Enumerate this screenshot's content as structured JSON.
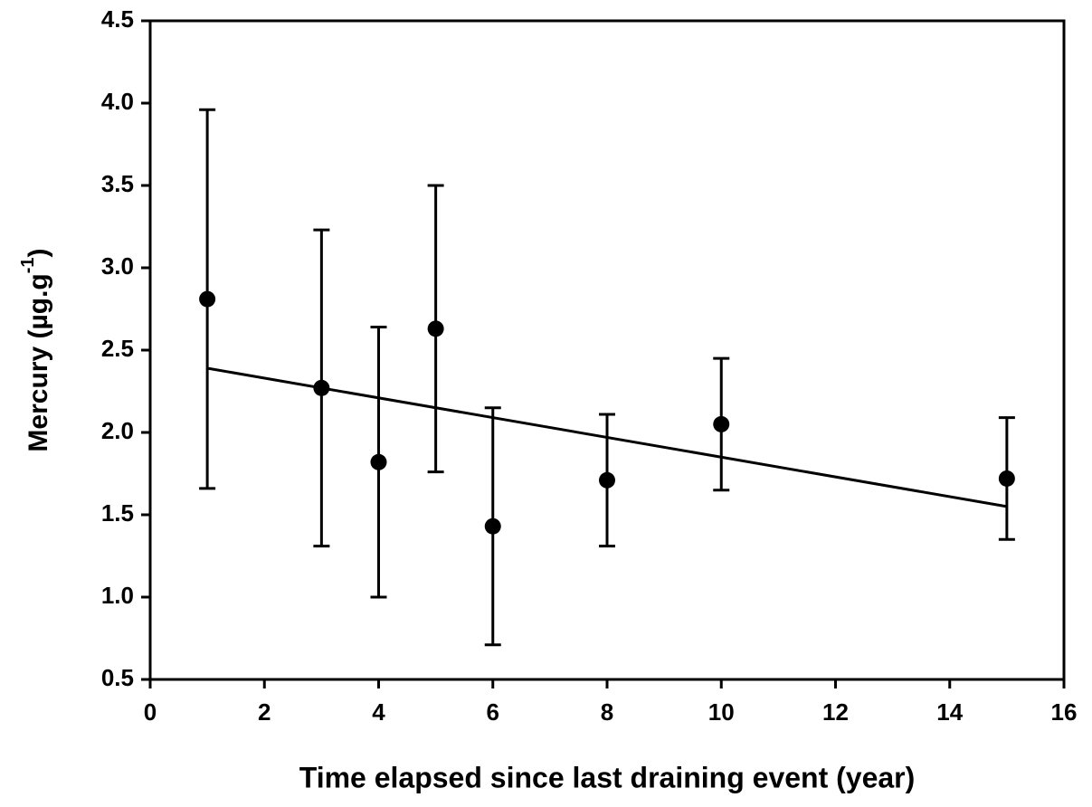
{
  "chart_data": {
    "type": "scatter",
    "x_label": "Time elapsed since last draining event (year)",
    "y_label": "Mercury (µg.g",
    "y_label_superscript": "-1",
    "y_label_end": ")",
    "series": [
      {
        "color": "#000000",
        "x": [
          1,
          3,
          4,
          5,
          6,
          8,
          10,
          15
        ],
        "values": [
          2.81,
          2.27,
          1.82,
          2.63,
          1.43,
          1.71,
          2.05,
          1.72
        ],
        "errors": [
          1.15,
          0.96,
          0.82,
          0.87,
          0.72,
          0.4,
          0.4,
          0.37
        ]
      }
    ],
    "trend_line": {
      "color": "#000000",
      "x": [
        1,
        15
      ],
      "values": [
        2.39,
        1.55
      ]
    },
    "xlim": [
      0,
      16
    ],
    "xticks": [
      0,
      2,
      4,
      6,
      8,
      10,
      12,
      14,
      16
    ],
    "ylim": [
      0.5,
      4.5
    ],
    "yticks": [
      {
        "value": 0.5,
        "label": "0.5"
      },
      {
        "value": 1.0,
        "label": "1.0"
      },
      {
        "value": 1.5,
        "label": "1.5"
      },
      {
        "value": 2.0,
        "label": "2.0"
      },
      {
        "value": 2.5,
        "label": "2.5"
      },
      {
        "value": 3.0,
        "label": "3.0"
      },
      {
        "value": 3.5,
        "label": "3.5"
      },
      {
        "value": 4.0,
        "label": "4.0"
      },
      {
        "value": 4.5,
        "label": "4.5"
      }
    ],
    "grid": false
  }
}
